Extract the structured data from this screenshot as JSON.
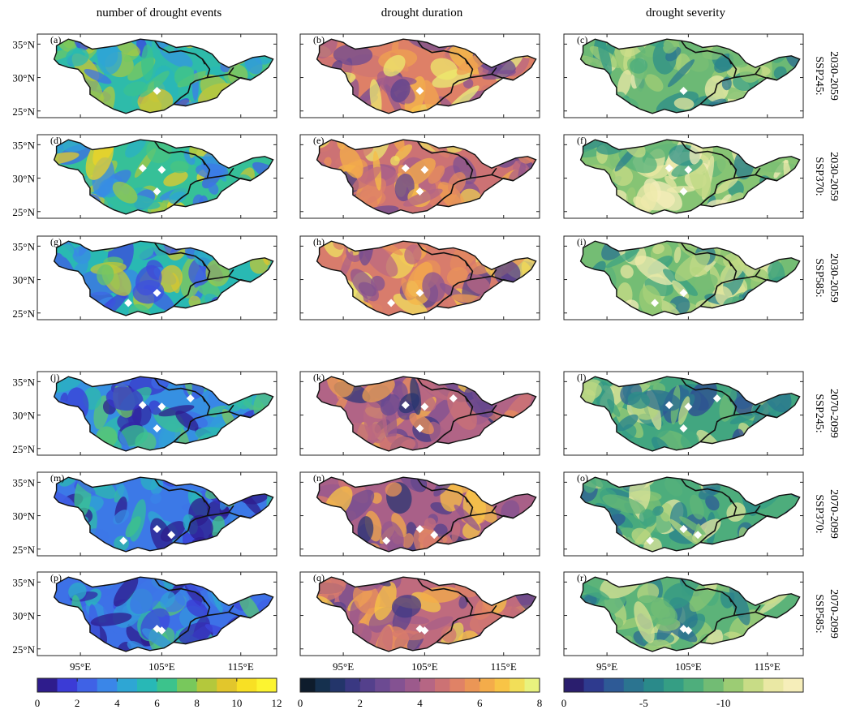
{
  "figure": {
    "column_titles": [
      "number of drought events",
      "drought duration",
      "drought severity"
    ],
    "row_labels": [
      [
        "SSP245:",
        "2030-2059"
      ],
      [
        "SSP370:",
        "2030-2059"
      ],
      [
        "SSP585:",
        "2030-2059"
      ],
      [
        "SSP245:",
        "2070-2099"
      ],
      [
        "SSP370:",
        "2070-2099"
      ],
      [
        "SSP585:",
        "2070-2099"
      ]
    ],
    "panel_labels": [
      [
        "(a)",
        "(b)",
        "(c)"
      ],
      [
        "(d)",
        "(e)",
        "(f)"
      ],
      [
        "(g)",
        "(h)",
        "(i)"
      ],
      [
        "(j)",
        "(k)",
        "(l)"
      ],
      [
        "(m)",
        "(n)",
        "(o)"
      ],
      [
        "(p)",
        "(q)",
        "(r)"
      ]
    ],
    "lat_ticks": [
      "35°N",
      "30°N",
      "25°N"
    ],
    "lon_ticks": [
      "95°E",
      "105°E",
      "115°E"
    ]
  },
  "chart_data": [
    {
      "type": "heatmap",
      "title": "number of drought events",
      "colorbar": {
        "min": 0,
        "max": 12,
        "tick_values": [
          0,
          2,
          4,
          6,
          8,
          10,
          12
        ],
        "tick_labels": [
          "0",
          "2",
          "4",
          "6",
          "8",
          "10",
          "12"
        ],
        "colors": [
          "#2e1c8c",
          "#3b3bd6",
          "#3f62e6",
          "#3a86e8",
          "#2ea6d4",
          "#28b8b6",
          "#3cc38c",
          "#78c85c",
          "#b4c83c",
          "#e2c62c",
          "#f8e024",
          "#fcf430"
        ]
      },
      "qualitative_pattern": {
        "2030-2059": "mostly 3-8, widespread blues with yellow patches in south and east",
        "2070-2099": "mostly 0-5, dominated by dark blues in west, lighter blues east"
      }
    },
    {
      "type": "heatmap",
      "title": "drought duration",
      "colorbar": {
        "min": 0,
        "max": 8,
        "tick_values": [
          0,
          2,
          4,
          6,
          8
        ],
        "tick_labels": [
          "0",
          "2",
          "4",
          "6",
          "8"
        ],
        "colors": [
          "#0e1c2c",
          "#15304e",
          "#23356a",
          "#3a3882",
          "#54408c",
          "#6c4a92",
          "#845292",
          "#9c5a8c",
          "#b66684",
          "#cc7274",
          "#e08266",
          "#eb9656",
          "#f4ac4a",
          "#f8c446",
          "#f2de58",
          "#e8f27e"
        ]
      },
      "qualitative_pattern": {
        "2030-2059": "mostly 4-7, orange dominated",
        "2070-2099": "mostly 3-6, purple-orange with dark patches in north-west"
      }
    },
    {
      "type": "heatmap",
      "title": "drought severity",
      "colorbar": {
        "min": 0,
        "max": -15,
        "tick_values": [
          0,
          -5,
          -10
        ],
        "tick_labels": [
          "0",
          "-5",
          "-10"
        ],
        "colors": [
          "#2a1e6e",
          "#2e3a8e",
          "#2e5a96",
          "#2b7490",
          "#2a8a8a",
          "#359e84",
          "#4eae7c",
          "#72bc74",
          "#9ccc74",
          "#c8dc86",
          "#eae8a4",
          "#f6eeba"
        ]
      },
      "qualitative_pattern": {
        "2030-2059": "mostly -5 to -12, teal-green with light patches",
        "2070-2099": "mostly -3 to -10, teal with dark patches in north-west"
      }
    }
  ]
}
